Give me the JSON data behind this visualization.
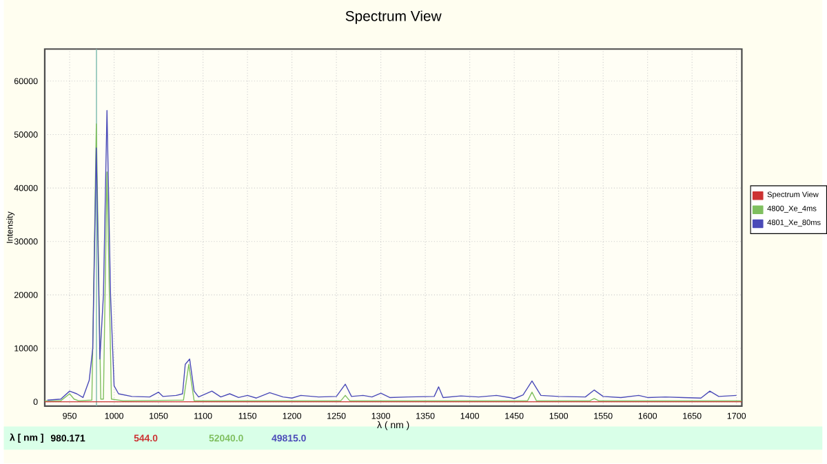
{
  "chart_data": {
    "type": "line",
    "title": "Spectrum View",
    "xlabel": "λ ( nm )",
    "ylabel": "Intensity",
    "xlim": [
      922,
      1706
    ],
    "ylim": [
      -800,
      66000
    ],
    "xticks": [
      950,
      1000,
      1050,
      1100,
      1150,
      1200,
      1250,
      1300,
      1350,
      1400,
      1450,
      1500,
      1550,
      1600,
      1650,
      1700
    ],
    "yticks": [
      0,
      10000,
      20000,
      30000,
      40000,
      50000,
      60000
    ],
    "grid": true,
    "legend": "right",
    "marker": "none",
    "line_style": "solid",
    "ref_lines": [
      {
        "axis": "x",
        "value": 980.171,
        "color": "#8fc4b8"
      }
    ],
    "annotations": [
      "λ [ nm ]",
      "980.171",
      "544.0",
      "52040.0",
      "49815.0"
    ],
    "series": [
      {
        "name": "Spectrum View",
        "color": "#cc3333",
        "x": [
          922,
          1000,
          1100,
          1200,
          1300,
          1400,
          1500,
          1600,
          1706
        ],
        "values": [
          0,
          0,
          0,
          0,
          0,
          0,
          0,
          0,
          0
        ]
      },
      {
        "name": "4800_Xe_4ms",
        "color": "#7fbf5f",
        "x": [
          922,
          940,
          950,
          955,
          960,
          975,
          980,
          985,
          988,
          992,
          997,
          1010,
          1078,
          1084,
          1090,
          1200,
          1255,
          1260,
          1265,
          1465,
          1470,
          1475,
          1535,
          1540,
          1545,
          1706
        ],
        "values": [
          200,
          200,
          1500,
          500,
          200,
          300,
          52000,
          500,
          500,
          43000,
          500,
          200,
          300,
          7000,
          200,
          200,
          200,
          1200,
          200,
          200,
          1800,
          200,
          200,
          600,
          200,
          200
        ]
      },
      {
        "name": "4801_Xe_80ms",
        "color": "#4a4ab8",
        "x": [
          925,
          940,
          950,
          958,
          965,
          972,
          976,
          980,
          984,
          988,
          992,
          996,
          1000,
          1005,
          1020,
          1040,
          1050,
          1055,
          1070,
          1077,
          1080,
          1085,
          1090,
          1095,
          1110,
          1120,
          1130,
          1140,
          1150,
          1160,
          1175,
          1190,
          1200,
          1210,
          1230,
          1250,
          1260,
          1267,
          1280,
          1290,
          1300,
          1310,
          1330,
          1360,
          1365,
          1370,
          1390,
          1410,
          1430,
          1445,
          1450,
          1460,
          1470,
          1480,
          1500,
          1530,
          1540,
          1550,
          1570,
          1590,
          1600,
          1620,
          1640,
          1660,
          1670,
          1680,
          1700
        ],
        "values": [
          300,
          500,
          2000,
          1500,
          800,
          4000,
          10000,
          47500,
          8000,
          20000,
          54500,
          20000,
          3000,
          1500,
          1000,
          900,
          1800,
          1000,
          1200,
          1500,
          7000,
          8000,
          2000,
          900,
          2000,
          900,
          1500,
          800,
          1200,
          700,
          1700,
          900,
          700,
          1200,
          900,
          1000,
          3300,
          1000,
          1200,
          900,
          1600,
          800,
          900,
          1000,
          2800,
          800,
          1100,
          900,
          1200,
          800,
          600,
          1300,
          3900,
          1200,
          1000,
          900,
          2200,
          1000,
          800,
          1200,
          800,
          900,
          800,
          700,
          2000,
          1000,
          1200
        ]
      }
    ]
  }
}
